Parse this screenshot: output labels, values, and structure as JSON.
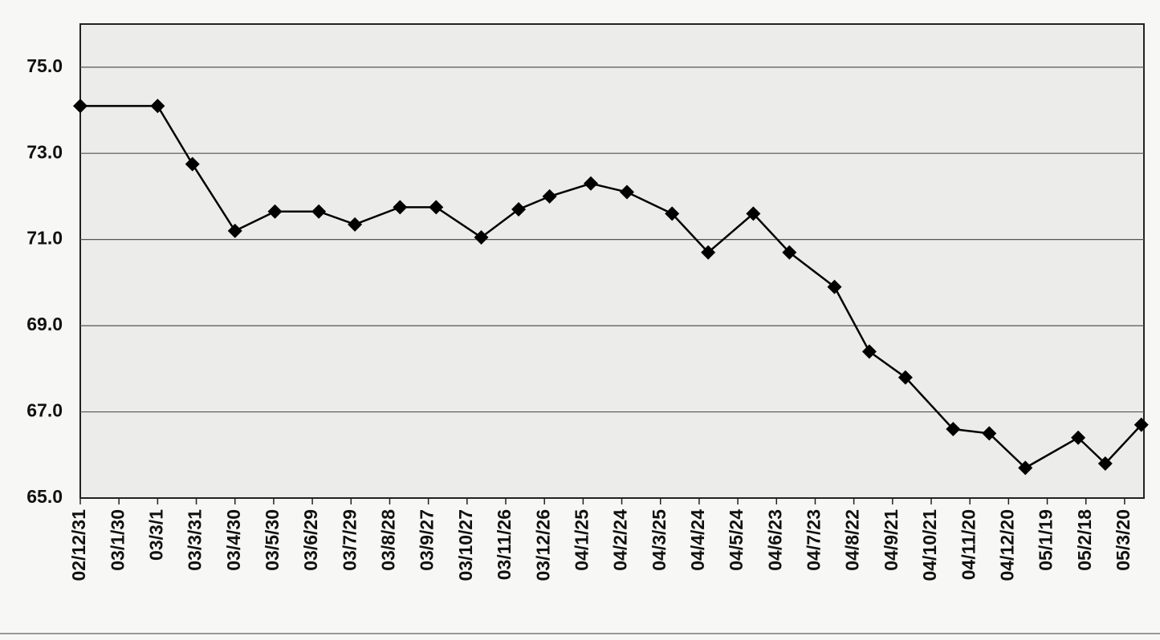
{
  "chart_data": {
    "type": "line",
    "x": [
      "02/12/31",
      "03/3/1",
      "03/3/28",
      "03/4/30",
      "03/5/31",
      "03/7/4",
      "03/8/1",
      "03/9/5",
      "03/10/3",
      "03/11/7",
      "03/12/6",
      "03/12/30",
      "04/1/31",
      "04/2/28",
      "04/4/3",
      "04/5/1",
      "04/6/5",
      "04/7/3",
      "04/8/7",
      "04/9/3",
      "04/10/1",
      "04/11/7",
      "04/12/5",
      "05/1/2",
      "05/2/12",
      "05/3/5",
      "05/4/2"
    ],
    "series": [
      {
        "color": "#000000",
        "values": [
          74.1,
          74.1,
          72.75,
          71.2,
          71.65,
          71.65,
          71.35,
          71.75,
          71.75,
          71.05,
          71.7,
          72.0,
          72.3,
          72.1,
          71.6,
          70.7,
          71.6,
          70.7,
          69.9,
          68.4,
          67.8,
          66.6,
          66.5,
          65.7,
          66.4,
          65.8,
          66.7
        ]
      }
    ],
    "xlim": [
      "02/12/31",
      "05/4/4"
    ],
    "xticks": [
      "02/12/31",
      "03/1/30",
      "03/3/1",
      "03/3/31",
      "03/4/30",
      "03/5/30",
      "03/6/29",
      "03/7/29",
      "03/8/28",
      "03/9/27",
      "03/10/27",
      "03/11/26",
      "03/12/26",
      "04/1/25",
      "04/2/24",
      "04/3/25",
      "04/4/24",
      "04/5/24",
      "04/6/23",
      "04/7/23",
      "04/8/22",
      "04/9/21",
      "04/10/21",
      "04/11/20",
      "04/12/20",
      "05/1/19",
      "05/2/18",
      "05/3/20"
    ],
    "ylim": [
      65,
      76
    ],
    "yticks": [
      {
        "value": 65,
        "label": "65.0"
      },
      {
        "value": 67,
        "label": "67.0"
      },
      {
        "value": 69,
        "label": "69.0"
      },
      {
        "value": 71,
        "label": "71.0"
      },
      {
        "value": 73,
        "label": "73.0"
      },
      {
        "value": 75,
        "label": "75.0"
      }
    ],
    "grid": true
  }
}
